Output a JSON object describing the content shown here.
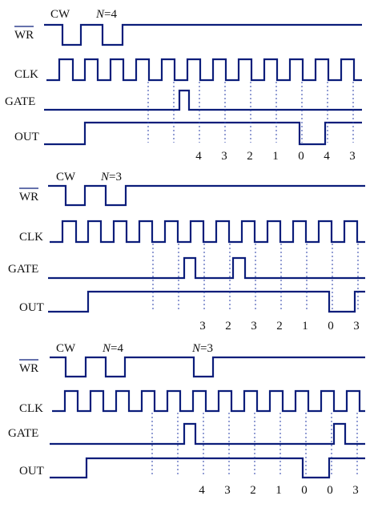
{
  "colors": {
    "signal": "#0b1d7a",
    "guide": "#2a3fa8",
    "text": "#111111"
  },
  "icons": [],
  "panels": [
    {
      "wr_label": "WR",
      "clk_label": "CLK",
      "gate_label": "GATE",
      "out_label": "OUT",
      "annotations": [
        {
          "prefix": "CW",
          "var": "",
          "rest": ""
        },
        {
          "prefix": "",
          "var": "N",
          "rest": "=4"
        }
      ],
      "counts": [
        "4",
        "3",
        "2",
        "1",
        "0",
        "4",
        "3"
      ]
    },
    {
      "wr_label": "WR",
      "clk_label": "CLK",
      "gate_label": "GATE",
      "out_label": "OUT",
      "annotations": [
        {
          "prefix": "CW",
          "var": "",
          "rest": ""
        },
        {
          "prefix": "",
          "var": "N",
          "rest": "=3"
        }
      ],
      "counts": [
        "3",
        "2",
        "3",
        "2",
        "1",
        "0",
        "3"
      ]
    },
    {
      "wr_label": "WR",
      "clk_label": "CLK",
      "gate_label": "GATE",
      "out_label": "OUT",
      "annotations": [
        {
          "prefix": "CW",
          "var": "",
          "rest": ""
        },
        {
          "prefix": "",
          "var": "N",
          "rest": "=4"
        },
        {
          "prefix": "",
          "var": "N",
          "rest": "=3"
        }
      ],
      "counts": [
        "4",
        "3",
        "2",
        "1",
        "0",
        "0",
        "3"
      ]
    }
  ]
}
